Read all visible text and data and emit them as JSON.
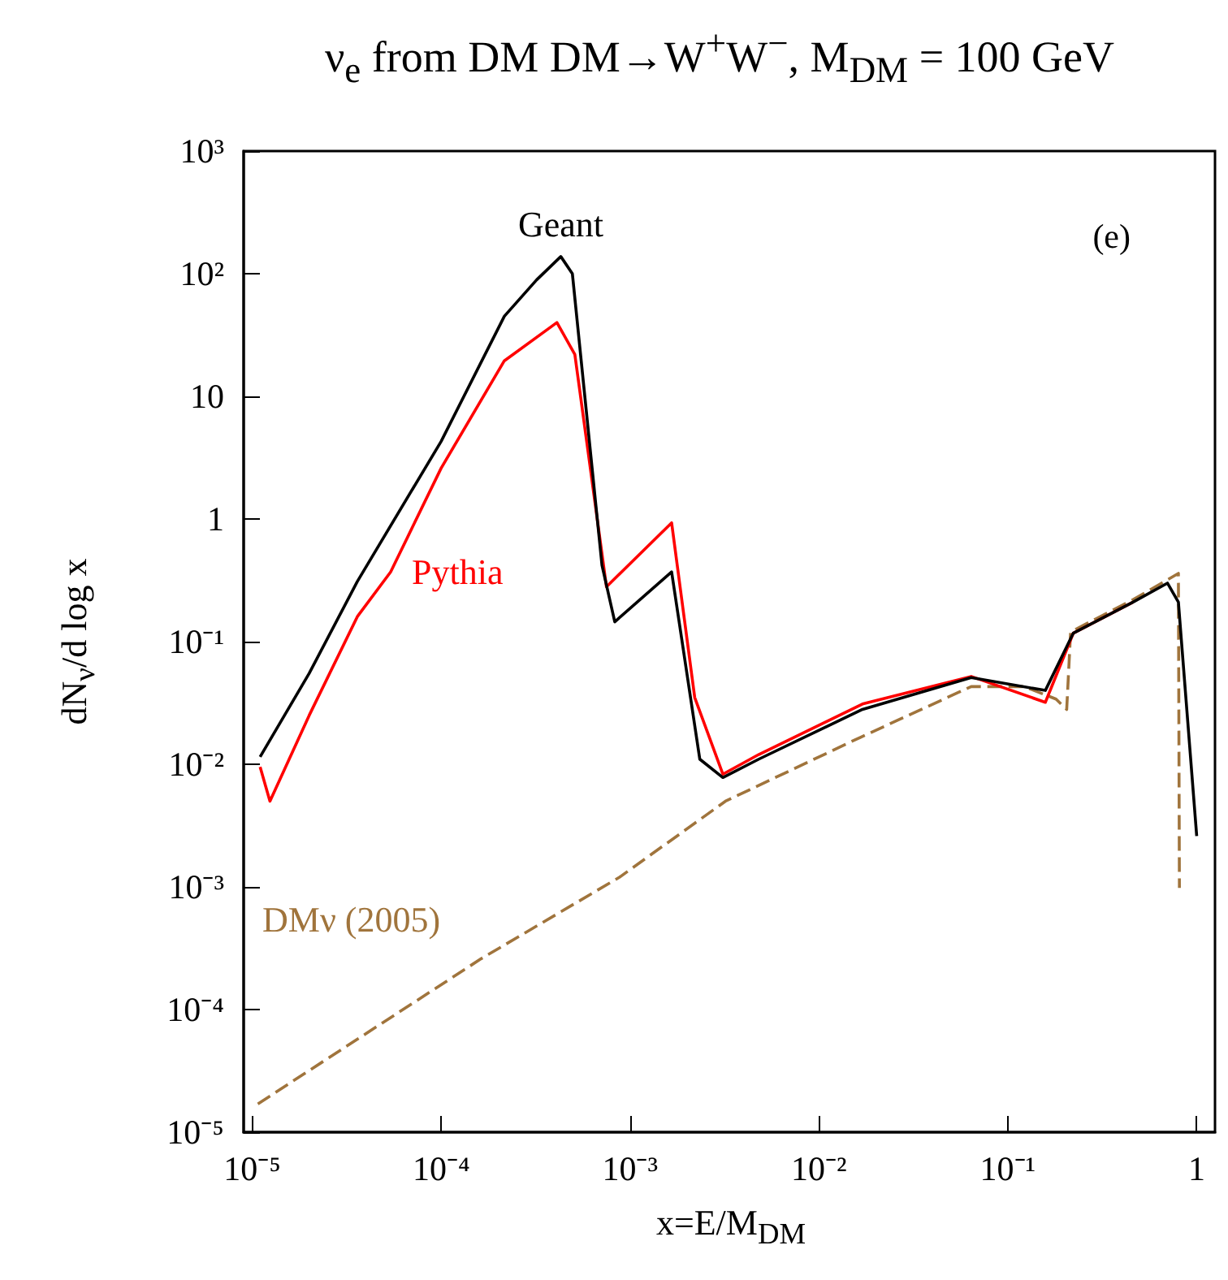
{
  "chart_data": {
    "type": "line",
    "title": "ν$_{e}$ from DM DM→W$^{+}$W$^{−}$, M$_{DM}$ = 100 GeV",
    "xlabel": "x=E/M$_{DM}$",
    "ylabel": "dN$_{ν}$/d log x",
    "annotations": [
      "(e)"
    ],
    "log": "xy",
    "grid": false,
    "legend": false,
    "marker": "none",
    "xlim": [
      9e-06,
      1.25
    ],
    "ylim": [
      1e-05,
      1000
    ],
    "xticks": [
      {
        "value": 1e-05,
        "label": "10⁻⁵"
      },
      {
        "value": 0.0001,
        "label": "10⁻⁴"
      },
      {
        "value": 0.001,
        "label": "10⁻³"
      },
      {
        "value": 0.01,
        "label": "10⁻²"
      },
      {
        "value": 0.1,
        "label": "10⁻¹"
      },
      1
    ],
    "yticks": [
      {
        "value": 1e-05,
        "label": "10⁻⁵"
      },
      {
        "value": 0.0001,
        "label": "10⁻⁴"
      },
      {
        "value": 0.001,
        "label": "10⁻³"
      },
      {
        "value": 0.01,
        "label": "10⁻²"
      },
      {
        "value": 0.1,
        "label": "10⁻¹"
      },
      1,
      10,
      {
        "value": 100,
        "label": "10²"
      },
      {
        "value": 1000,
        "label": "10³"
      }
    ],
    "series": [
      {
        "name": "Geant",
        "color": "#000000",
        "line_style": "solid",
        "x": [
          1.1e-05,
          2e-05,
          3.6e-05,
          0.0001,
          0.000216,
          0.00032,
          0.00043,
          0.000495,
          0.00071,
          0.00083,
          0.00166,
          0.00234,
          0.0031,
          0.0048,
          0.017,
          0.064,
          0.158,
          0.222,
          0.46,
          0.7,
          0.8,
          1.0
        ],
        "values": [
          0.0115,
          0.055,
          0.31,
          4.3,
          45,
          89,
          138,
          100,
          0.42,
          0.145,
          0.37,
          0.011,
          0.0078,
          0.011,
          0.028,
          0.051,
          0.04,
          0.117,
          0.21,
          0.3,
          0.21,
          0.0026
        ]
      },
      {
        "name": "Pythia",
        "color": "#ff0000",
        "line_style": "solid",
        "x": [
          1.1e-05,
          1.24e-05,
          2e-05,
          3.6e-05,
          5.4e-05,
          0.0001,
          0.000216,
          0.00041,
          0.00051,
          0.00075,
          0.00166,
          0.0022,
          0.0031,
          0.0048,
          0.017,
          0.064,
          0.158,
          0.222,
          0.46
        ],
        "values": [
          0.0095,
          0.005,
          0.025,
          0.16,
          0.37,
          2.6,
          19.5,
          40,
          22,
          0.28,
          0.93,
          0.035,
          0.0083,
          0.012,
          0.031,
          0.052,
          0.032,
          0.117,
          0.21
        ]
      },
      {
        "name": "DMν (2005)",
        "color": "#a0743c",
        "line_style": "dashed",
        "x": [
          1.07e-05,
          0.000163,
          0.00088,
          0.0032,
          0.0166,
          0.064,
          0.122,
          0.18,
          0.205,
          0.215,
          0.46,
          0.8,
          0.81
        ],
        "values": [
          1.7e-05,
          0.00026,
          0.0012,
          0.005,
          0.0166,
          0.043,
          0.043,
          0.034,
          0.028,
          0.12,
          0.22,
          0.36,
          0.00098
        ]
      }
    ]
  }
}
